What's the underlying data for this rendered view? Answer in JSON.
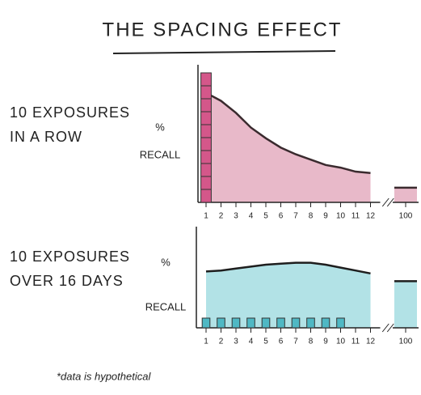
{
  "title": "THE SPACING EFFECT",
  "footnote": "*data is hypothetical",
  "chart_data": [
    {
      "type": "line",
      "area": true,
      "label_lines": [
        "10 EXPOSURES",
        "IN A ROW"
      ],
      "ylabel_lines": [
        "%",
        "RECALL"
      ],
      "x": [
        1,
        2,
        3,
        4,
        5,
        6,
        7,
        8,
        9,
        10,
        11,
        12,
        100
      ],
      "values": [
        82,
        76,
        67,
        56,
        48,
        41,
        36,
        32,
        28,
        26,
        23,
        22,
        11
      ],
      "xticks": [
        1,
        2,
        3,
        4,
        5,
        6,
        7,
        8,
        9,
        10,
        11,
        12,
        100
      ],
      "x_break": [
        12,
        100
      ],
      "ylim": [
        0,
        100
      ],
      "color": "#3a2a2e",
      "fill": "#d98aa5",
      "exposures": {
        "x": [
          1
        ],
        "counts": [
          10
        ],
        "color": "#d4578a"
      }
    },
    {
      "type": "line",
      "area": true,
      "label_lines": [
        "10 EXPOSURES",
        "OVER 16 DAYS"
      ],
      "ylabel_lines": [
        "%",
        "RECALL"
      ],
      "x": [
        1,
        2,
        3,
        4,
        5,
        6,
        7,
        8,
        9,
        10,
        11,
        12,
        100
      ],
      "values": [
        58,
        59,
        61,
        63,
        65,
        66,
        67,
        67,
        65,
        62,
        59,
        56,
        48
      ],
      "xticks": [
        1,
        2,
        3,
        4,
        5,
        6,
        7,
        8,
        9,
        10,
        11,
        12,
        100
      ],
      "x_break": [
        12,
        100
      ],
      "ylim": [
        0,
        100
      ],
      "color": "#1e1e1e",
      "fill": "#7fcfd6",
      "exposures": {
        "x": [
          1,
          2,
          3,
          4,
          5,
          6,
          7,
          8,
          9,
          10
        ],
        "counts": [
          1,
          1,
          1,
          1,
          1,
          1,
          1,
          1,
          1,
          1
        ],
        "color": "#4fb8c4"
      }
    }
  ]
}
